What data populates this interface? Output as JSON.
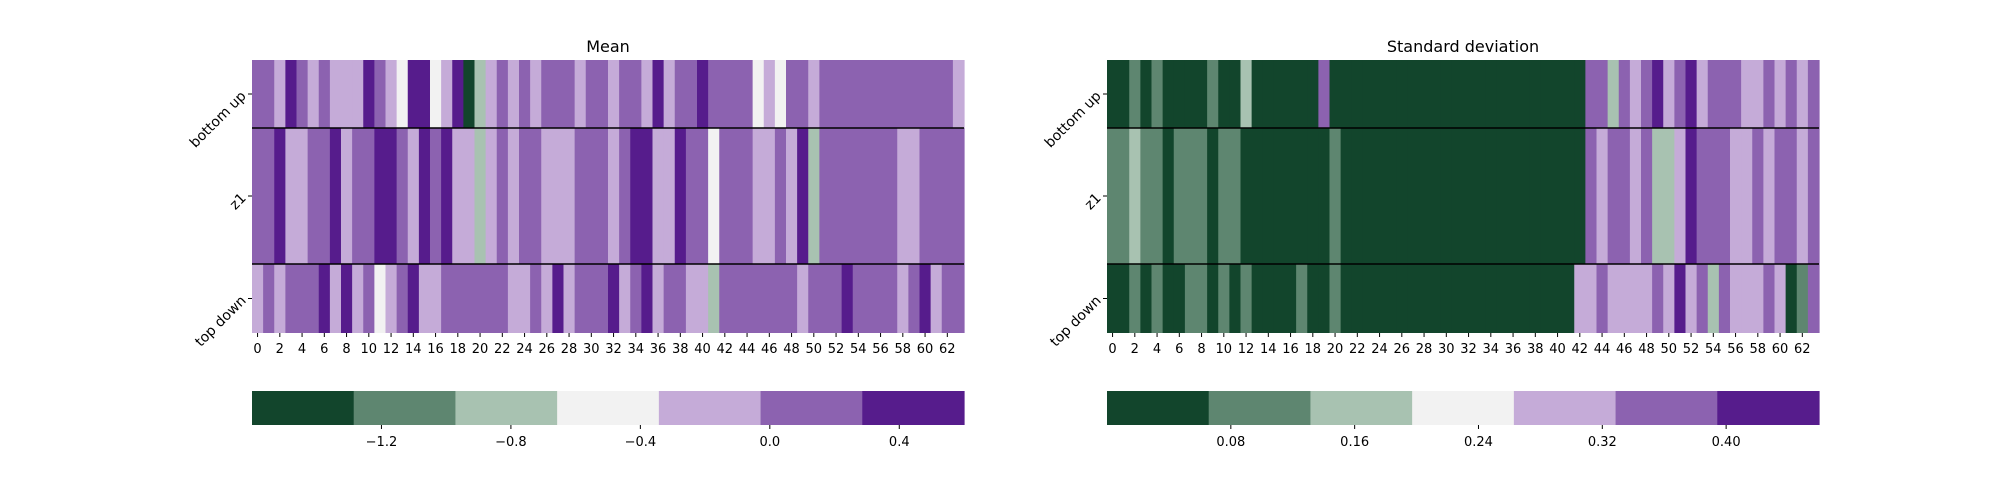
{
  "chart_data": [
    {
      "type": "heatmap",
      "title": "Mean",
      "rows": [
        "bottom up",
        "z1",
        "top down"
      ],
      "x_tick_labels": [
        "0",
        "2",
        "4",
        "6",
        "8",
        "10",
        "12",
        "14",
        "16",
        "18",
        "20",
        "22",
        "24",
        "26",
        "28",
        "30",
        "32",
        "34",
        "36",
        "38",
        "40",
        "42",
        "44",
        "46",
        "48",
        "50",
        "52",
        "54",
        "56",
        "58",
        "60",
        "62"
      ],
      "n_columns": 64,
      "colorbar": {
        "type": "discrete",
        "range": [
          -1.6,
          0.6
        ],
        "colors": [
          "#12452c",
          "#5e8670",
          "#a8c2b1",
          "#f2f2f2",
          "#c5abd8",
          "#8c62b0",
          "#561c8c"
        ],
        "tick_values": [
          -1.2,
          -0.8,
          -0.4,
          0.0,
          0.4
        ],
        "tick_labels": [
          "−1.2",
          "−0.8",
          "−0.4",
          "0.0",
          "0.4"
        ]
      },
      "values": [
        [
          0.1,
          0.1,
          -0.2,
          0.3,
          0.1,
          -0.2,
          0.1,
          -0.2,
          -0.2,
          -0.2,
          0.4,
          0.1,
          -0.2,
          -0.4,
          0.4,
          0.4,
          -0.4,
          -0.2,
          0.4,
          -1.5,
          -0.8,
          -0.2,
          0.1,
          -0.2,
          0.1,
          -0.2,
          0.1,
          0.1,
          0.1,
          -0.2,
          0.1,
          0.1,
          -0.2,
          0.1,
          0.1,
          -0.2,
          0.4,
          -0.2,
          0.1,
          0.1,
          0.4,
          0.1,
          0.1,
          0.1,
          0.1,
          -0.4,
          -0.2,
          -0.4,
          0.1,
          0.1,
          -0.2,
          0.1,
          0.1,
          0.1,
          0.1,
          0.1,
          0.1,
          0.1,
          0.1,
          0.1,
          0.1,
          0.1,
          0.1,
          -0.2
        ],
        [
          0.1,
          0.1,
          0.4,
          -0.2,
          -0.2,
          0.1,
          0.1,
          0.4,
          -0.2,
          0.1,
          0.1,
          0.4,
          0.4,
          0.1,
          -0.2,
          0.4,
          0.1,
          0.4,
          -0.2,
          -0.2,
          -0.8,
          -0.2,
          0.1,
          -0.2,
          0.1,
          0.1,
          -0.2,
          -0.2,
          -0.2,
          0.1,
          0.1,
          0.1,
          -0.2,
          0.1,
          0.4,
          0.4,
          -0.2,
          -0.2,
          0.4,
          0.1,
          0.1,
          -0.4,
          0.1,
          0.1,
          0.1,
          -0.2,
          -0.2,
          0.1,
          -0.2,
          0.4,
          -0.8,
          0.1,
          0.1,
          0.1,
          0.1,
          0.1,
          0.1,
          0.1,
          -0.2,
          -0.2,
          0.1,
          0.1,
          0.1,
          0.1
        ],
        [
          -0.2,
          0.1,
          -0.2,
          0.1,
          0.1,
          0.1,
          0.4,
          -0.2,
          0.4,
          -0.2,
          0.1,
          -0.4,
          -0.2,
          0.1,
          0.4,
          -0.2,
          -0.2,
          0.1,
          0.1,
          0.1,
          0.1,
          0.1,
          0.1,
          -0.2,
          -0.2,
          0.1,
          -0.2,
          0.4,
          -0.2,
          0.1,
          0.1,
          0.1,
          0.4,
          -0.2,
          0.1,
          0.4,
          -0.2,
          0.1,
          0.1,
          -0.2,
          -0.2,
          -0.8,
          0.1,
          0.1,
          0.1,
          0.1,
          0.1,
          0.1,
          0.1,
          -0.2,
          0.1,
          0.1,
          0.1,
          0.4,
          0.1,
          0.1,
          0.1,
          0.1,
          -0.2,
          0.1,
          0.4,
          -0.2,
          0.1,
          0.1
        ]
      ]
    },
    {
      "type": "heatmap",
      "title": "Standard deviation",
      "rows": [
        "bottom up",
        "z1",
        "top down"
      ],
      "x_tick_labels": [
        "0",
        "2",
        "4",
        "6",
        "8",
        "10",
        "12",
        "14",
        "16",
        "18",
        "20",
        "22",
        "24",
        "26",
        "28",
        "30",
        "32",
        "34",
        "36",
        "38",
        "40",
        "42",
        "44",
        "46",
        "48",
        "50",
        "52",
        "54",
        "56",
        "58",
        "60",
        "62"
      ],
      "n_columns": 64,
      "colorbar": {
        "type": "discrete",
        "range": [
          0.0,
          0.46
        ],
        "colors": [
          "#12452c",
          "#5e8670",
          "#a8c2b1",
          "#f2f2f2",
          "#c5abd8",
          "#8c62b0",
          "#561c8c"
        ],
        "tick_values": [
          0.08,
          0.16,
          0.24,
          0.32,
          0.4
        ],
        "tick_labels": [
          "0.08",
          "0.16",
          "0.24",
          "0.32",
          "0.40"
        ]
      },
      "values": [
        [
          0.02,
          0.02,
          0.09,
          0.02,
          0.09,
          0.02,
          0.02,
          0.02,
          0.02,
          0.09,
          0.02,
          0.02,
          0.15,
          0.02,
          0.02,
          0.02,
          0.02,
          0.02,
          0.02,
          0.35,
          0.02,
          0.02,
          0.02,
          0.02,
          0.02,
          0.02,
          0.02,
          0.02,
          0.02,
          0.02,
          0.02,
          0.02,
          0.02,
          0.02,
          0.02,
          0.02,
          0.02,
          0.02,
          0.02,
          0.02,
          0.02,
          0.02,
          0.02,
          0.35,
          0.35,
          0.15,
          0.35,
          0.3,
          0.35,
          0.42,
          0.3,
          0.35,
          0.42,
          0.3,
          0.35,
          0.35,
          0.35,
          0.3,
          0.3,
          0.35,
          0.3,
          0.35,
          0.3,
          0.35
        ],
        [
          0.09,
          0.09,
          0.15,
          0.09,
          0.09,
          0.02,
          0.09,
          0.09,
          0.09,
          0.02,
          0.09,
          0.09,
          0.02,
          0.02,
          0.02,
          0.02,
          0.02,
          0.02,
          0.02,
          0.02,
          0.09,
          0.02,
          0.02,
          0.02,
          0.02,
          0.02,
          0.02,
          0.02,
          0.02,
          0.02,
          0.02,
          0.02,
          0.02,
          0.02,
          0.02,
          0.02,
          0.02,
          0.02,
          0.02,
          0.02,
          0.02,
          0.02,
          0.02,
          0.35,
          0.3,
          0.35,
          0.35,
          0.3,
          0.35,
          0.15,
          0.15,
          0.3,
          0.42,
          0.35,
          0.35,
          0.35,
          0.3,
          0.3,
          0.35,
          0.3,
          0.35,
          0.35,
          0.3,
          0.35
        ],
        [
          0.02,
          0.02,
          0.09,
          0.02,
          0.09,
          0.02,
          0.02,
          0.09,
          0.09,
          0.02,
          0.09,
          0.02,
          0.09,
          0.02,
          0.02,
          0.02,
          0.02,
          0.09,
          0.02,
          0.02,
          0.09,
          0.02,
          0.02,
          0.02,
          0.02,
          0.02,
          0.02,
          0.02,
          0.02,
          0.02,
          0.02,
          0.02,
          0.02,
          0.02,
          0.02,
          0.02,
          0.02,
          0.02,
          0.02,
          0.02,
          0.02,
          0.02,
          0.3,
          0.3,
          0.35,
          0.3,
          0.3,
          0.3,
          0.3,
          0.35,
          0.3,
          0.42,
          0.3,
          0.35,
          0.15,
          0.35,
          0.3,
          0.3,
          0.3,
          0.35,
          0.3,
          0.02,
          0.09,
          0.35
        ]
      ]
    }
  ]
}
